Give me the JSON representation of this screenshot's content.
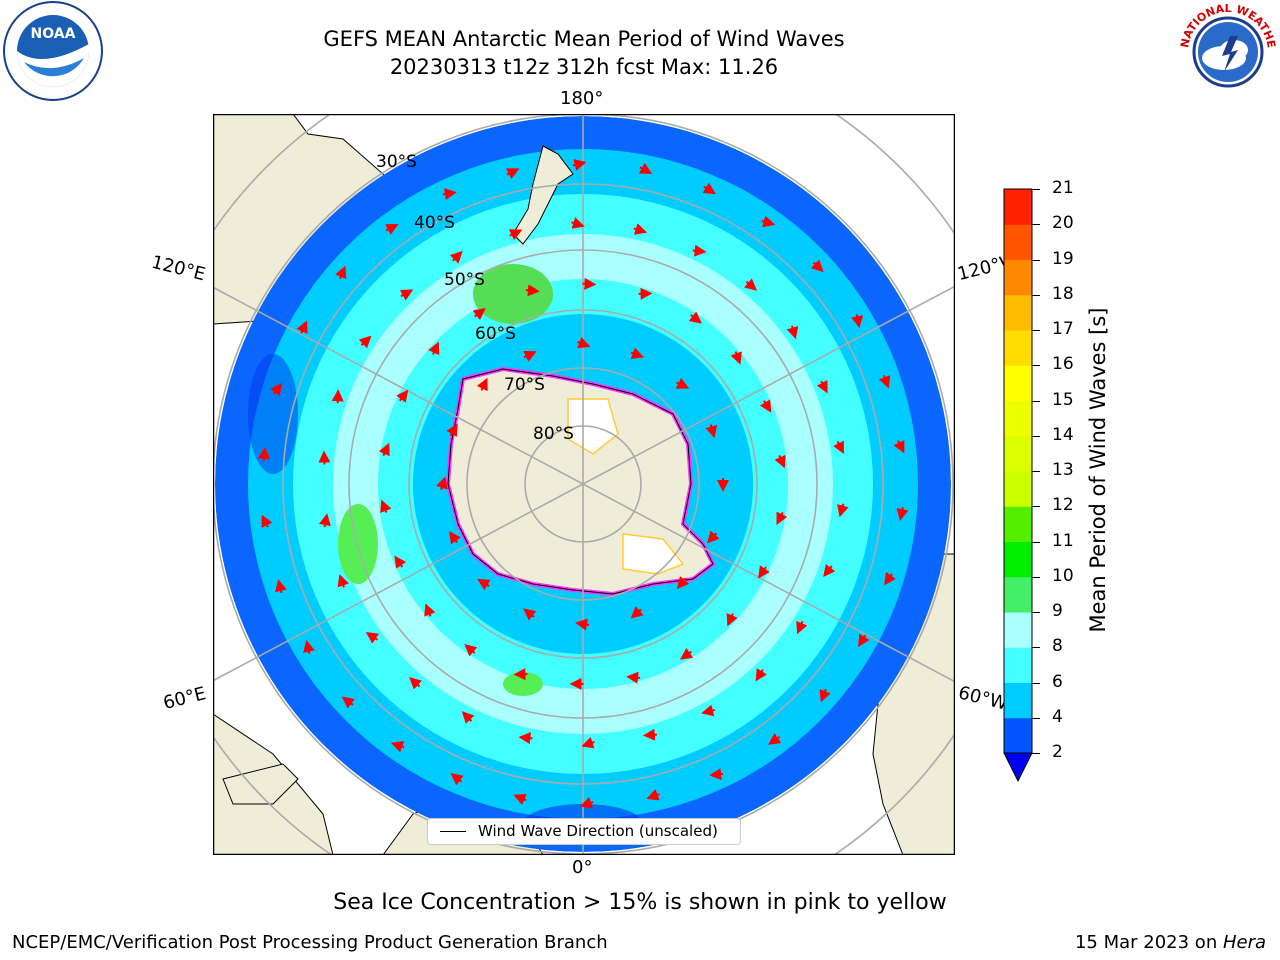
{
  "title": {
    "line1": "GEFS MEAN Antarctic Mean Period of Wind Waves",
    "line2": "20230313 t12z 312h fcst   Max: 11.26"
  },
  "logos": {
    "left": "NOAA",
    "right": "NATIONAL WEATHER SERVICE"
  },
  "map": {
    "longitude_labels": [
      "180°",
      "120°E",
      "120°W",
      "60°E",
      "60°W",
      "0°"
    ],
    "latitude_labels": [
      "30°S",
      "40°S",
      "50°S",
      "60°S",
      "70°S",
      "80°S"
    ],
    "legend_label": "Wind Wave Direction (unscaled)",
    "colors": {
      "land": "#efedd8",
      "sea_ice_pink": "#ff33ff",
      "sea_ice_yellow": "#ffcc33",
      "arrow": "#ff0000"
    }
  },
  "colorbar": {
    "label": "Mean Period of Wind Waves [s]",
    "ticks": [
      "2",
      "4",
      "6",
      "8",
      "9",
      "10",
      "11",
      "12",
      "13",
      "14",
      "15",
      "16",
      "17",
      "18",
      "19",
      "20",
      "21"
    ],
    "colors": [
      "#0055ff",
      "#00ccff",
      "#44ffff",
      "#aaffff",
      "#44ee66",
      "#00ee00",
      "#55ee00",
      "#ccff00",
      "#ddff00",
      "#eeff00",
      "#ffff00",
      "#ffdd00",
      "#ffbb00",
      "#ff8800",
      "#ff5500",
      "#ff2200",
      "#ff0000"
    ],
    "extend_color": "#0000ee"
  },
  "caption": "Sea Ice Concentration > 15% is shown in pink to yellow",
  "footer": {
    "left": "NCEP/EMC/Verification Post Processing Product Generation Branch",
    "right_prefix": "15 Mar 2023 on ",
    "right_italic": "Hera"
  }
}
